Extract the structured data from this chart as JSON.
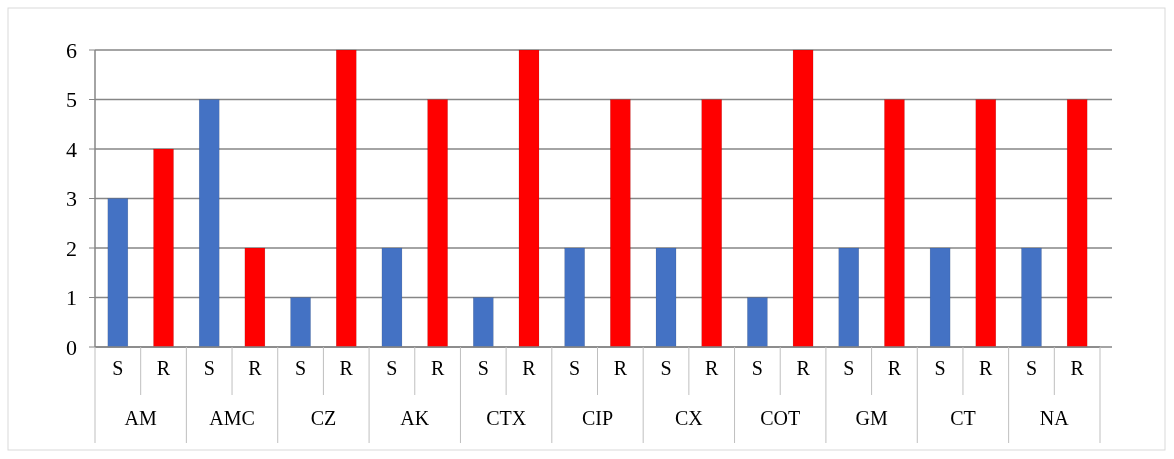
{
  "chart_data": {
    "type": "bar",
    "categories": [
      "AM",
      "AMC",
      "CZ",
      "AK",
      "CTX",
      "CIP",
      "CX",
      "COT",
      "GM",
      "CT",
      "NA"
    ],
    "series": [
      {
        "name": "S",
        "color": "#4472c4",
        "values": [
          3,
          5,
          1,
          2,
          1,
          2,
          2,
          1,
          2,
          2,
          2
        ]
      },
      {
        "name": "R",
        "color": "#ff0000",
        "values": [
          4,
          2,
          6,
          5,
          6,
          5,
          5,
          6,
          5,
          5,
          5
        ]
      }
    ],
    "ylim": [
      0,
      6
    ],
    "yticks": [
      0,
      1,
      2,
      3,
      4,
      5,
      6
    ],
    "grid": "y",
    "legend": "bottom"
  }
}
